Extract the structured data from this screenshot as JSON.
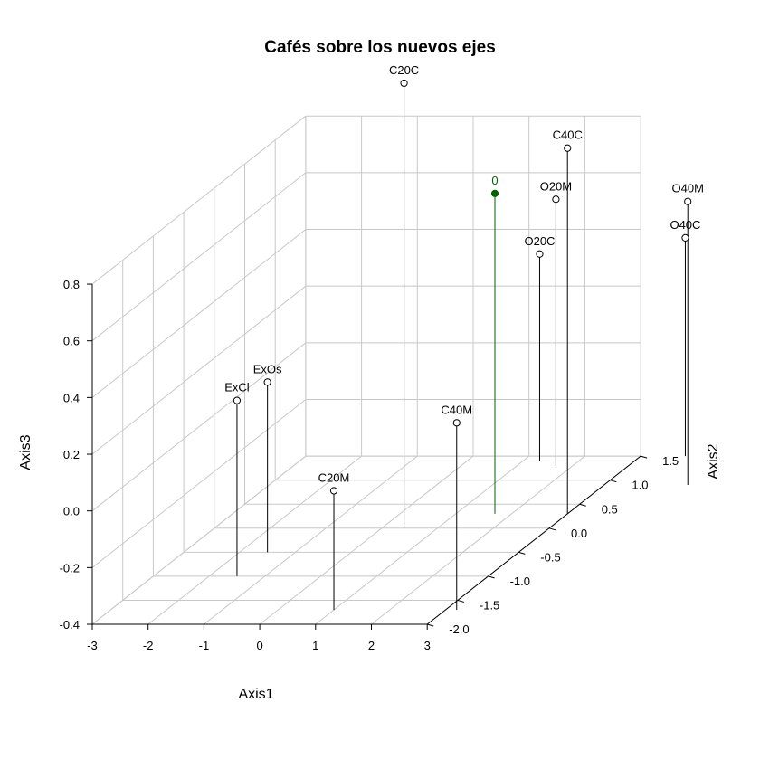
{
  "chart_data": {
    "type": "scatter3d",
    "title": "Cafés sobre los nuevos ejes",
    "xlabel": "Axis1",
    "ylabel": "Axis2",
    "zlabel": "Axis3",
    "xlim": [
      -3,
      3
    ],
    "ylim": [
      -2,
      1.5
    ],
    "zlim": [
      -0.4,
      0.8
    ],
    "x_ticks": [
      "-3",
      "-2",
      "-1",
      "0",
      "1",
      "2",
      "3"
    ],
    "y_ticks": [
      "-2.0",
      "-1.5",
      "-1.0",
      "-0.5",
      "0.0",
      "0.5",
      "1.0",
      "1.5"
    ],
    "z_ticks": [
      "-0.4",
      "-0.2",
      "0.0",
      "0.2",
      "0.4",
      "0.6",
      "0.8"
    ],
    "grid": true,
    "type_vertical_lines": true,
    "points": [
      {
        "label": "C20C",
        "x": 0.4,
        "y": 0.0,
        "z": 1.17,
        "color": "#000000"
      },
      {
        "label": "O20M",
        "x": 1.7,
        "y": 1.3,
        "z": 0.54,
        "color": "#000000"
      },
      {
        "label": "O20C",
        "x": 1.3,
        "y": 1.4,
        "z": 0.33,
        "color": "#000000"
      },
      {
        "label": "C40C",
        "x": 3.0,
        "y": 0.3,
        "z": 0.89,
        "color": "#000000"
      },
      {
        "label": "O40M",
        "x": 4.5,
        "y": 0.9,
        "z": 0.6,
        "color": "#000000"
      },
      {
        "label": "O40C",
        "x": 3.8,
        "y": 1.5,
        "z": 0.37,
        "color": "#000000"
      },
      {
        "label": "C40M",
        "x": 3.2,
        "y": -1.7,
        "z": 0.26,
        "color": "#000000"
      },
      {
        "label": "C20M",
        "x": 1.0,
        "y": -1.7,
        "z": 0.02,
        "color": "#000000"
      },
      {
        "label": "ExOs",
        "x": -1.5,
        "y": -0.5,
        "z": 0.2,
        "color": "#000000"
      },
      {
        "label": "ExCl",
        "x": -1.5,
        "y": -1.0,
        "z": 0.22,
        "color": "#000000"
      },
      {
        "label": "0",
        "x": 1.7,
        "y": 0.3,
        "z": 0.73,
        "color": "#006400",
        "filled": true
      }
    ]
  }
}
